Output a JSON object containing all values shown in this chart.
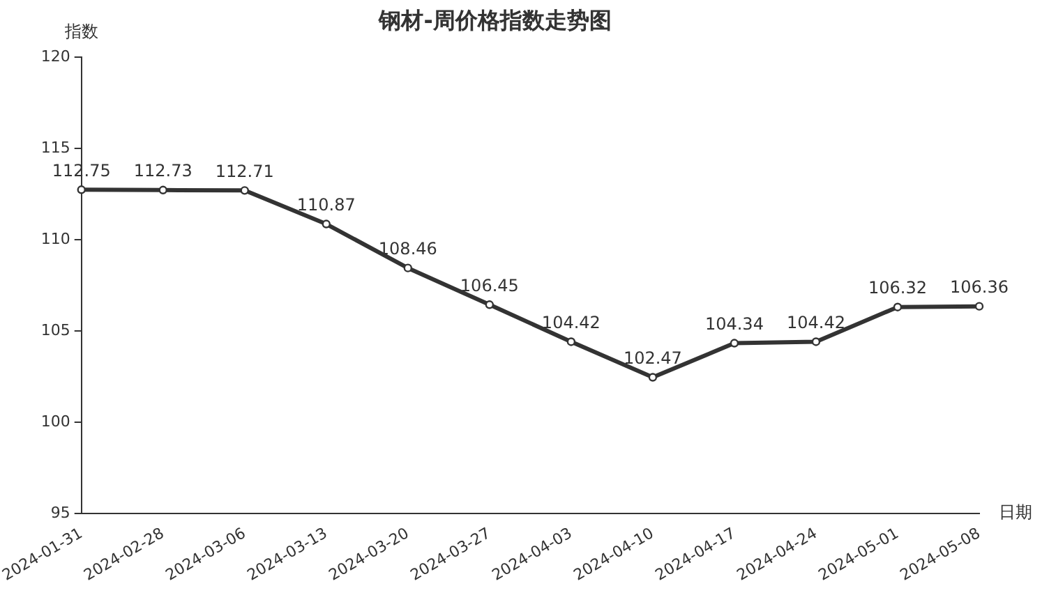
{
  "chart_data": {
    "type": "line",
    "title": "钢材-周价格指数走势图",
    "xlabel": "日期",
    "ylabel": "指数",
    "categories": [
      "2024-01-31",
      "2024-02-28",
      "2024-03-06",
      "2024-03-13",
      "2024-03-20",
      "2024-03-27",
      "2024-04-03",
      "2024-04-10",
      "2024-04-17",
      "2024-04-24",
      "2024-05-01",
      "2024-05-08"
    ],
    "series": [
      {
        "color": "#333333",
        "values": [
          112.75,
          112.73,
          112.71,
          110.87,
          108.46,
          106.45,
          104.42,
          102.47,
          104.34,
          104.42,
          106.32,
          106.36
        ]
      }
    ],
    "ylim": [
      95,
      120
    ],
    "yticks": [
      95,
      100,
      105,
      110,
      115,
      120
    ],
    "grid": false,
    "legend": false,
    "marker": "circle",
    "line_style": "solid",
    "data_labels": true
  }
}
